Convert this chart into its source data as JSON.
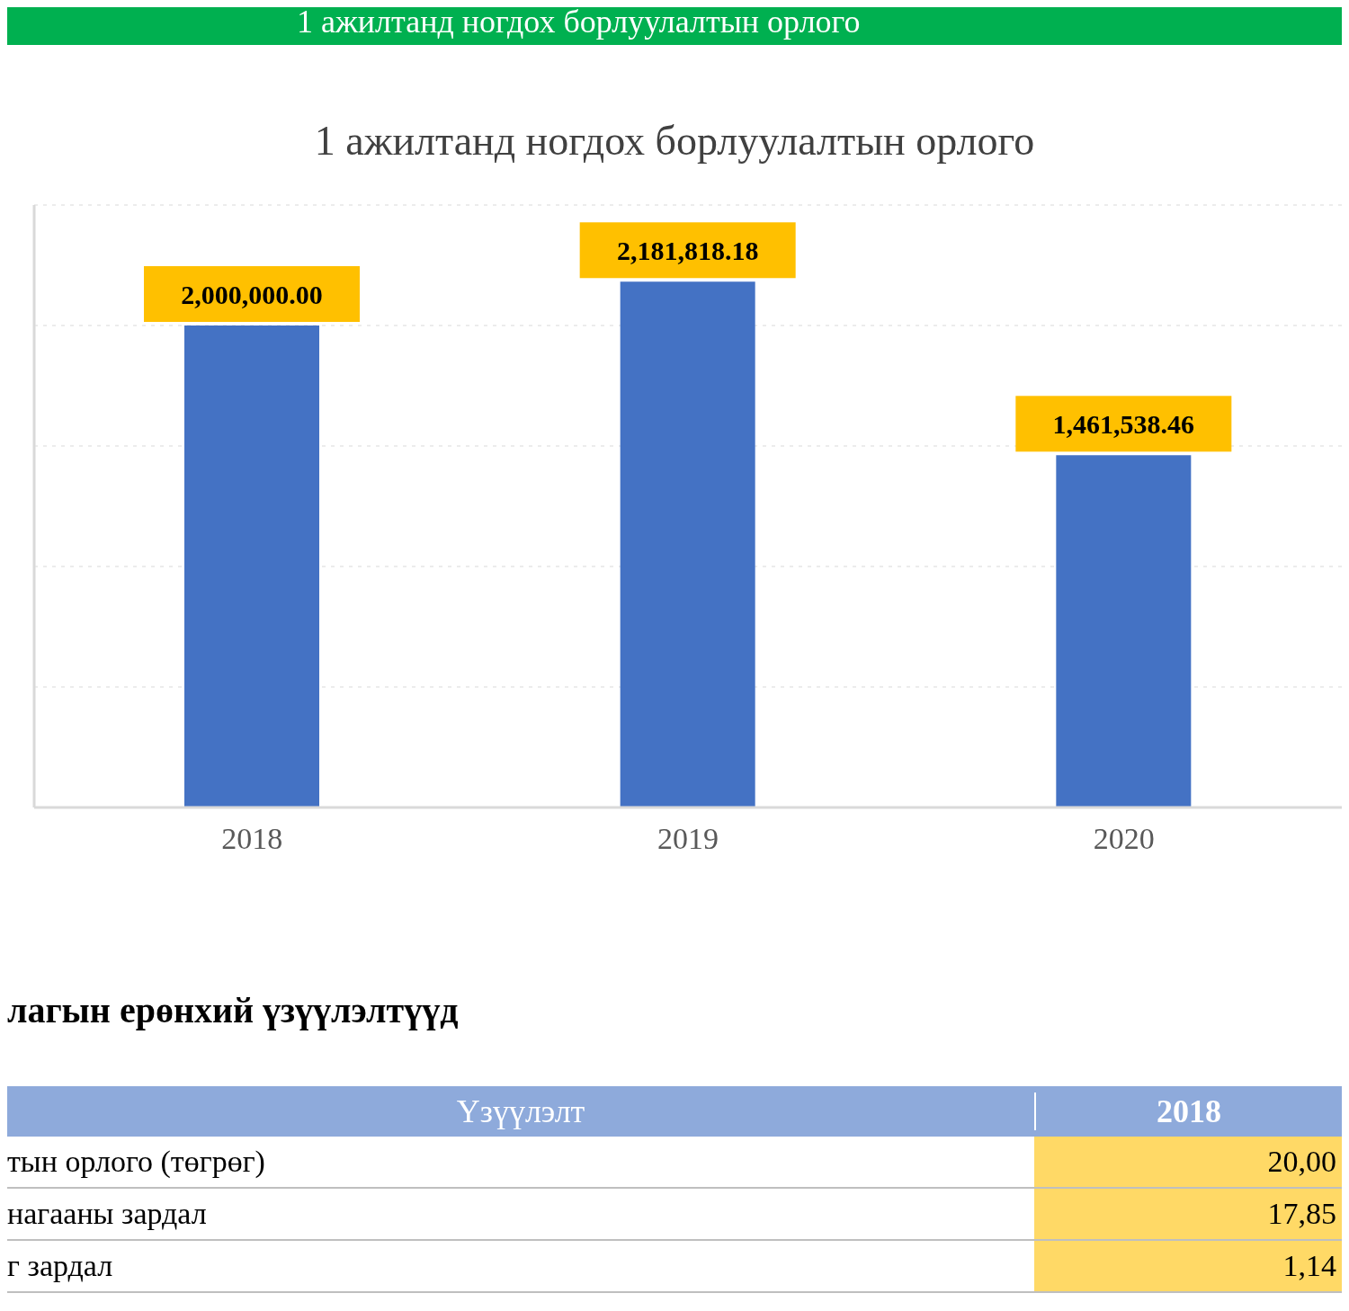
{
  "chart_data": {
    "type": "bar",
    "title": "1 ажилтанд ногдох борлуулалтын орлого",
    "categories": [
      "2018",
      "2019",
      "2020"
    ],
    "values": [
      2000000,
      2181818.18,
      1461538.46
    ],
    "value_labels": [
      "2,000,000.00",
      "2,181,818.18",
      "1,461,538.46"
    ],
    "color": "#4472c4",
    "ylim": [
      0,
      2500000
    ],
    "tick_labels": "x",
    "grid": "y",
    "annotations": [
      "1 ажилтанд ногдох борлуулалтын орлого",
      "лагын ерөнхий үзүүлэлтүүд",
      "Үзүүлэлт",
      "2018",
      "тын орлого (төгрөг)",
      "20,00",
      "нагааны зардал",
      "17,85",
      "г зардал",
      "1,14"
    ]
  }
}
